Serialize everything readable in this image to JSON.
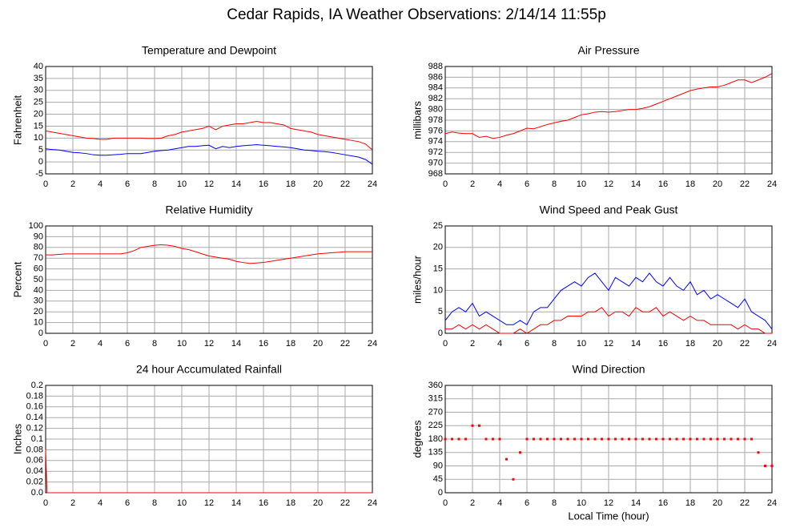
{
  "title": "Cedar Rapids, IA Weather Observations: 2/14/14 11:55p",
  "chart_data": [
    {
      "type": "line",
      "title": "Temperature and Dewpoint",
      "ylabel": "Fahrenheit",
      "x": [
        0,
        0.5,
        1,
        1.5,
        2,
        2.5,
        3,
        3.5,
        4,
        4.5,
        5,
        5.5,
        6,
        6.5,
        7,
        7.5,
        8,
        8.5,
        9,
        9.5,
        10,
        10.5,
        11,
        11.5,
        12,
        12.5,
        13,
        13.5,
        14,
        14.5,
        15,
        15.5,
        16,
        16.5,
        17,
        17.5,
        18,
        18.5,
        19,
        19.5,
        20,
        20.5,
        21,
        21.5,
        22,
        22.5,
        23,
        23.5,
        24
      ],
      "series": [
        {
          "color": "#ff0000",
          "values": [
            13,
            12.5,
            12,
            11.5,
            11,
            10.5,
            10,
            9.8,
            9.5,
            9.5,
            10,
            10,
            10,
            10,
            10,
            9.8,
            9.8,
            10,
            11,
            11.5,
            12.5,
            13,
            13.5,
            14,
            15,
            13.5,
            15,
            15.5,
            16,
            16,
            16.5,
            17,
            16.5,
            16.5,
            16,
            15.5,
            14,
            13.5,
            13,
            12.5,
            11.5,
            11,
            10.5,
            10,
            9.5,
            9,
            8.5,
            7.5,
            5
          ]
        },
        {
          "color": "#0000ff",
          "values": [
            5.5,
            5.2,
            5,
            4.5,
            4,
            3.8,
            3.5,
            3,
            2.8,
            2.8,
            3,
            3.2,
            3.5,
            3.5,
            3.5,
            4,
            4.5,
            4.8,
            5,
            5.5,
            6,
            6.5,
            6.5,
            6.8,
            7,
            5.5,
            6.5,
            6,
            6.5,
            6.8,
            7,
            7.2,
            7,
            6.8,
            6.5,
            6.3,
            6,
            5.5,
            5,
            4.8,
            4.5,
            4.3,
            4,
            3.5,
            3,
            2.5,
            2,
            1,
            -1
          ]
        }
      ],
      "xlim": [
        0,
        24
      ],
      "xticks": [
        0,
        2,
        4,
        6,
        8,
        10,
        12,
        14,
        16,
        18,
        20,
        22,
        24
      ],
      "ylim": [
        -5,
        40
      ],
      "yticks": [
        -5,
        0,
        5,
        10,
        15,
        20,
        25,
        30,
        35,
        40
      ],
      "grid": true
    },
    {
      "type": "line",
      "title": "Air Pressure",
      "ylabel": "millibars",
      "x": [
        0,
        0.5,
        1,
        1.5,
        2,
        2.5,
        3,
        3.5,
        4,
        4.5,
        5,
        5.5,
        6,
        6.5,
        7,
        7.5,
        8,
        8.5,
        9,
        9.5,
        10,
        10.5,
        11,
        11.5,
        12,
        12.5,
        13,
        13.5,
        14,
        14.5,
        15,
        15.5,
        16,
        16.5,
        17,
        17.5,
        18,
        18.5,
        19,
        19.5,
        20,
        20.5,
        21,
        21.5,
        22,
        22.5,
        23,
        23.5,
        24
      ],
      "series": [
        {
          "color": "#ff0000",
          "values": [
            975.5,
            975.8,
            975.6,
            975.5,
            975.5,
            974.8,
            975,
            974.6,
            974.8,
            975.2,
            975.5,
            976,
            976.5,
            976.4,
            976.8,
            977.2,
            977.5,
            977.8,
            978,
            978.5,
            979,
            979.2,
            979.5,
            979.6,
            979.5,
            979.6,
            979.8,
            980,
            980,
            980.2,
            980.5,
            981,
            981.5,
            982,
            982.5,
            983,
            983.5,
            983.8,
            984,
            984.2,
            984.2,
            984.5,
            985,
            985.5,
            985.5,
            985,
            985.5,
            986,
            986.7
          ]
        }
      ],
      "xlim": [
        0,
        24
      ],
      "xticks": [
        0,
        2,
        4,
        6,
        8,
        10,
        12,
        14,
        16,
        18,
        20,
        22,
        24
      ],
      "ylim": [
        968,
        988
      ],
      "yticks": [
        968,
        970,
        972,
        974,
        976,
        978,
        980,
        982,
        984,
        986,
        988
      ],
      "grid": true
    },
    {
      "type": "line",
      "title": "Relative Humidity",
      "ylabel": "Percent",
      "x": [
        0,
        0.5,
        1,
        1.5,
        2,
        2.5,
        3,
        3.5,
        4,
        4.5,
        5,
        5.5,
        6,
        6.5,
        7,
        7.5,
        8,
        8.5,
        9,
        9.5,
        10,
        10.5,
        11,
        11.5,
        12,
        12.5,
        13,
        13.5,
        14,
        14.5,
        15,
        15.5,
        16,
        16.5,
        17,
        17.5,
        18,
        18.5,
        19,
        19.5,
        20,
        20.5,
        21,
        21.5,
        22,
        22.5,
        23,
        23.5,
        24
      ],
      "series": [
        {
          "color": "#ff0000",
          "values": [
            73,
            73,
            73.5,
            74,
            74,
            74,
            74,
            74,
            74,
            74,
            74,
            74,
            75,
            77,
            80,
            81,
            82,
            82.5,
            82,
            81,
            79,
            78,
            76,
            74,
            72,
            71,
            70,
            69,
            67,
            66,
            65,
            65.5,
            66,
            67,
            68,
            69,
            70,
            71,
            72,
            73,
            74,
            74.5,
            75,
            75.5,
            76,
            76,
            76,
            76,
            76
          ]
        }
      ],
      "xlim": [
        0,
        24
      ],
      "xticks": [
        0,
        2,
        4,
        6,
        8,
        10,
        12,
        14,
        16,
        18,
        20,
        22,
        24
      ],
      "ylim": [
        0,
        100
      ],
      "yticks": [
        0,
        10,
        20,
        30,
        40,
        50,
        60,
        70,
        80,
        90,
        100
      ],
      "grid": true
    },
    {
      "type": "line",
      "title": "Wind Speed and Peak Gust",
      "ylabel": "miles/hour",
      "x": [
        0,
        0.5,
        1,
        1.5,
        2,
        2.5,
        3,
        3.5,
        4,
        4.5,
        5,
        5.5,
        6,
        6.5,
        7,
        7.5,
        8,
        8.5,
        9,
        9.5,
        10,
        10.5,
        11,
        11.5,
        12,
        12.5,
        13,
        13.5,
        14,
        14.5,
        15,
        15.5,
        16,
        16.5,
        17,
        17.5,
        18,
        18.5,
        19,
        19.5,
        20,
        20.5,
        21,
        21.5,
        22,
        22.5,
        23,
        23.5,
        24
      ],
      "series": [
        {
          "color": "#0000ff",
          "values": [
            3,
            5,
            6,
            5,
            7,
            4,
            5,
            4,
            3,
            2,
            2,
            3,
            2,
            5,
            6,
            6,
            8,
            10,
            11,
            12,
            11,
            13,
            14,
            12,
            10,
            13,
            12,
            11,
            13,
            12,
            14,
            12,
            11,
            13,
            11,
            10,
            12,
            9,
            10,
            8,
            9,
            8,
            7,
            6,
            8,
            5,
            4,
            3,
            1
          ]
        },
        {
          "color": "#ff0000",
          "values": [
            1,
            1,
            2,
            1,
            2,
            1,
            2,
            1,
            0,
            0,
            0,
            1,
            0,
            1,
            2,
            2,
            3,
            3,
            4,
            4,
            4,
            5,
            5,
            6,
            4,
            5,
            5,
            4,
            6,
            5,
            5,
            6,
            4,
            5,
            4,
            3,
            4,
            3,
            3,
            2,
            2,
            2,
            2,
            1,
            2,
            1,
            1,
            0,
            0
          ]
        }
      ],
      "xlim": [
        0,
        24
      ],
      "xticks": [
        0,
        2,
        4,
        6,
        8,
        10,
        12,
        14,
        16,
        18,
        20,
        22,
        24
      ],
      "ylim": [
        0,
        25
      ],
      "yticks": [
        0,
        5,
        10,
        15,
        20,
        25
      ],
      "grid": true
    },
    {
      "type": "line",
      "title": "24 hour Accumulated Rainfall",
      "ylabel": "Inches",
      "x": [
        0,
        0.1,
        24
      ],
      "series": [
        {
          "color": "#ff0000",
          "values": [
            0.08,
            0,
            0
          ]
        }
      ],
      "xlim": [
        0,
        24
      ],
      "xticks": [
        0,
        2,
        4,
        6,
        8,
        10,
        12,
        14,
        16,
        18,
        20,
        22,
        24
      ],
      "ylim": [
        0,
        0.2
      ],
      "yticks": [
        {
          "value": 0,
          "label": "0.0"
        },
        0.02,
        0.04,
        0.06,
        0.08,
        0.1,
        0.12,
        0.14,
        0.16,
        0.18,
        0.2
      ],
      "grid": true
    },
    {
      "type": "scatter",
      "title": "Wind Direction",
      "ylabel": "degrees",
      "xlabel": "Local Time (hour)",
      "x": [
        0,
        0.5,
        1,
        1.5,
        2,
        2.5,
        3,
        3.5,
        4,
        4.5,
        5,
        5.5,
        6,
        6.5,
        7,
        7.5,
        8,
        8.5,
        9,
        9.5,
        10,
        10.5,
        11,
        11.5,
        12,
        12.5,
        13,
        13.5,
        14,
        14.5,
        15,
        15.5,
        16,
        16.5,
        17,
        17.5,
        18,
        18.5,
        19,
        19.5,
        20,
        20.5,
        21,
        21.5,
        22,
        22.5,
        23,
        23.5,
        24
      ],
      "series": [
        {
          "color": "#ff0000",
          "values": [
            180,
            180,
            180,
            180,
            225,
            225,
            180,
            180,
            180,
            112.5,
            45,
            135,
            180,
            180,
            180,
            180,
            180,
            180,
            180,
            180,
            180,
            180,
            180,
            180,
            180,
            180,
            180,
            180,
            180,
            180,
            180,
            180,
            180,
            180,
            180,
            180,
            180,
            180,
            180,
            180,
            180,
            180,
            180,
            180,
            180,
            180,
            135,
            90,
            90
          ]
        }
      ],
      "xlim": [
        0,
        24
      ],
      "xticks": [
        0,
        2,
        4,
        6,
        8,
        10,
        12,
        14,
        16,
        18,
        20,
        22,
        24
      ],
      "ylim": [
        0,
        360
      ],
      "yticks": [
        0,
        45,
        90,
        135,
        180,
        225,
        270,
        315,
        360
      ],
      "grid": true
    }
  ]
}
